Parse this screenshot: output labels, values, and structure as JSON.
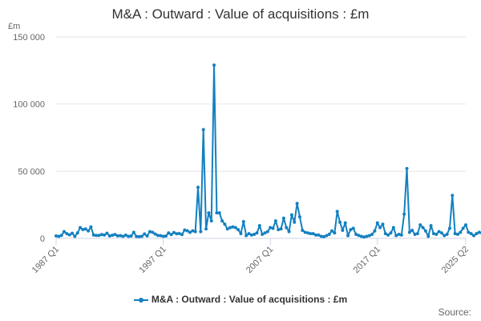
{
  "chart_data": {
    "type": "line",
    "title": "M&A : Outward : Value of acquisitions : £m",
    "unit_label": "£m",
    "ylim": [
      0,
      150000
    ],
    "y_ticks": [
      0,
      50000,
      100000,
      150000
    ],
    "y_tick_labels": [
      "0",
      "50 000",
      "100 000",
      "150 000"
    ],
    "x_tick_labels": [
      "1987 Q1",
      "1997 Q1",
      "2007 Q1",
      "2017 Q1",
      "2025 Q2"
    ],
    "grid": "horizontal",
    "legend_position": "bottom-center",
    "series": [
      {
        "name": "M&A : Outward : Value of acquisitions : £m",
        "color": "#1380C0",
        "segments": [
          {
            "start": "1987 Q1",
            "values": [
              1800,
              1500,
              2200,
              5000,
              3500,
              2600,
              3800,
              1500,
              4000,
              8000,
              6500,
              7000,
              5500,
              8500,
              2500,
              2200,
              2200,
              2800,
              2500,
              3800,
              1800,
              2300,
              2800,
              1900,
              2000,
              1500,
              2400,
              1500,
              1700,
              4500,
              1400,
              1300,
              1500,
              3300,
              1800,
              5000,
              4500,
              3200,
              2200,
              2000,
              1500,
              1700,
              4000,
              2800,
              4300,
              3400,
              3600,
              2800,
              6200,
              5600,
              4500,
              5600,
              5000,
              38000,
              5000,
              81000,
              7000,
              19000,
              13000,
              129000,
              19000,
              19000,
              13000,
              10500,
              7000,
              8000,
              8500,
              8000,
              6500,
              3500,
              12500,
              2000,
              3500,
              2500,
              3000,
              4000,
              9500,
              3000,
              4000,
              5000,
              8000,
              7500,
              13000,
              6500,
              7000,
              15000,
              8000,
              5000,
              17500,
              12000,
              26000,
              16000,
              6000,
              4500,
              4000,
              3500,
              3500,
              2500,
              2500,
              1500,
              1200,
              2000,
              3000,
              5500,
              4000,
              20000,
              12000,
              6000,
              11500,
              2000,
              6500,
              7500,
              3000,
              2200,
              1500,
              1000
            ]
          },
          {
            "start": "2016 Q1",
            "values": [
              1500,
              2000,
              3000,
              5500,
              11500,
              8000,
              10500,
              3500,
              2500,
              4000,
              8000,
              2000,
              3000,
              2500,
              18000,
              52000,
              4500,
              6000,
              3000,
              3500,
              10000,
              8000,
              5500,
              1500,
              9500,
              3500,
              3000,
              5000,
              4000,
              2000,
              3000,
              7500,
              32000,
              3500,
              3000,
              4500,
              7500,
              10000,
              4500,
              3500,
              2000,
              3500,
              4500,
              4000,
              3500,
              3000,
              8000,
              4000
            ]
          }
        ]
      }
    ]
  },
  "credits": "Source:"
}
